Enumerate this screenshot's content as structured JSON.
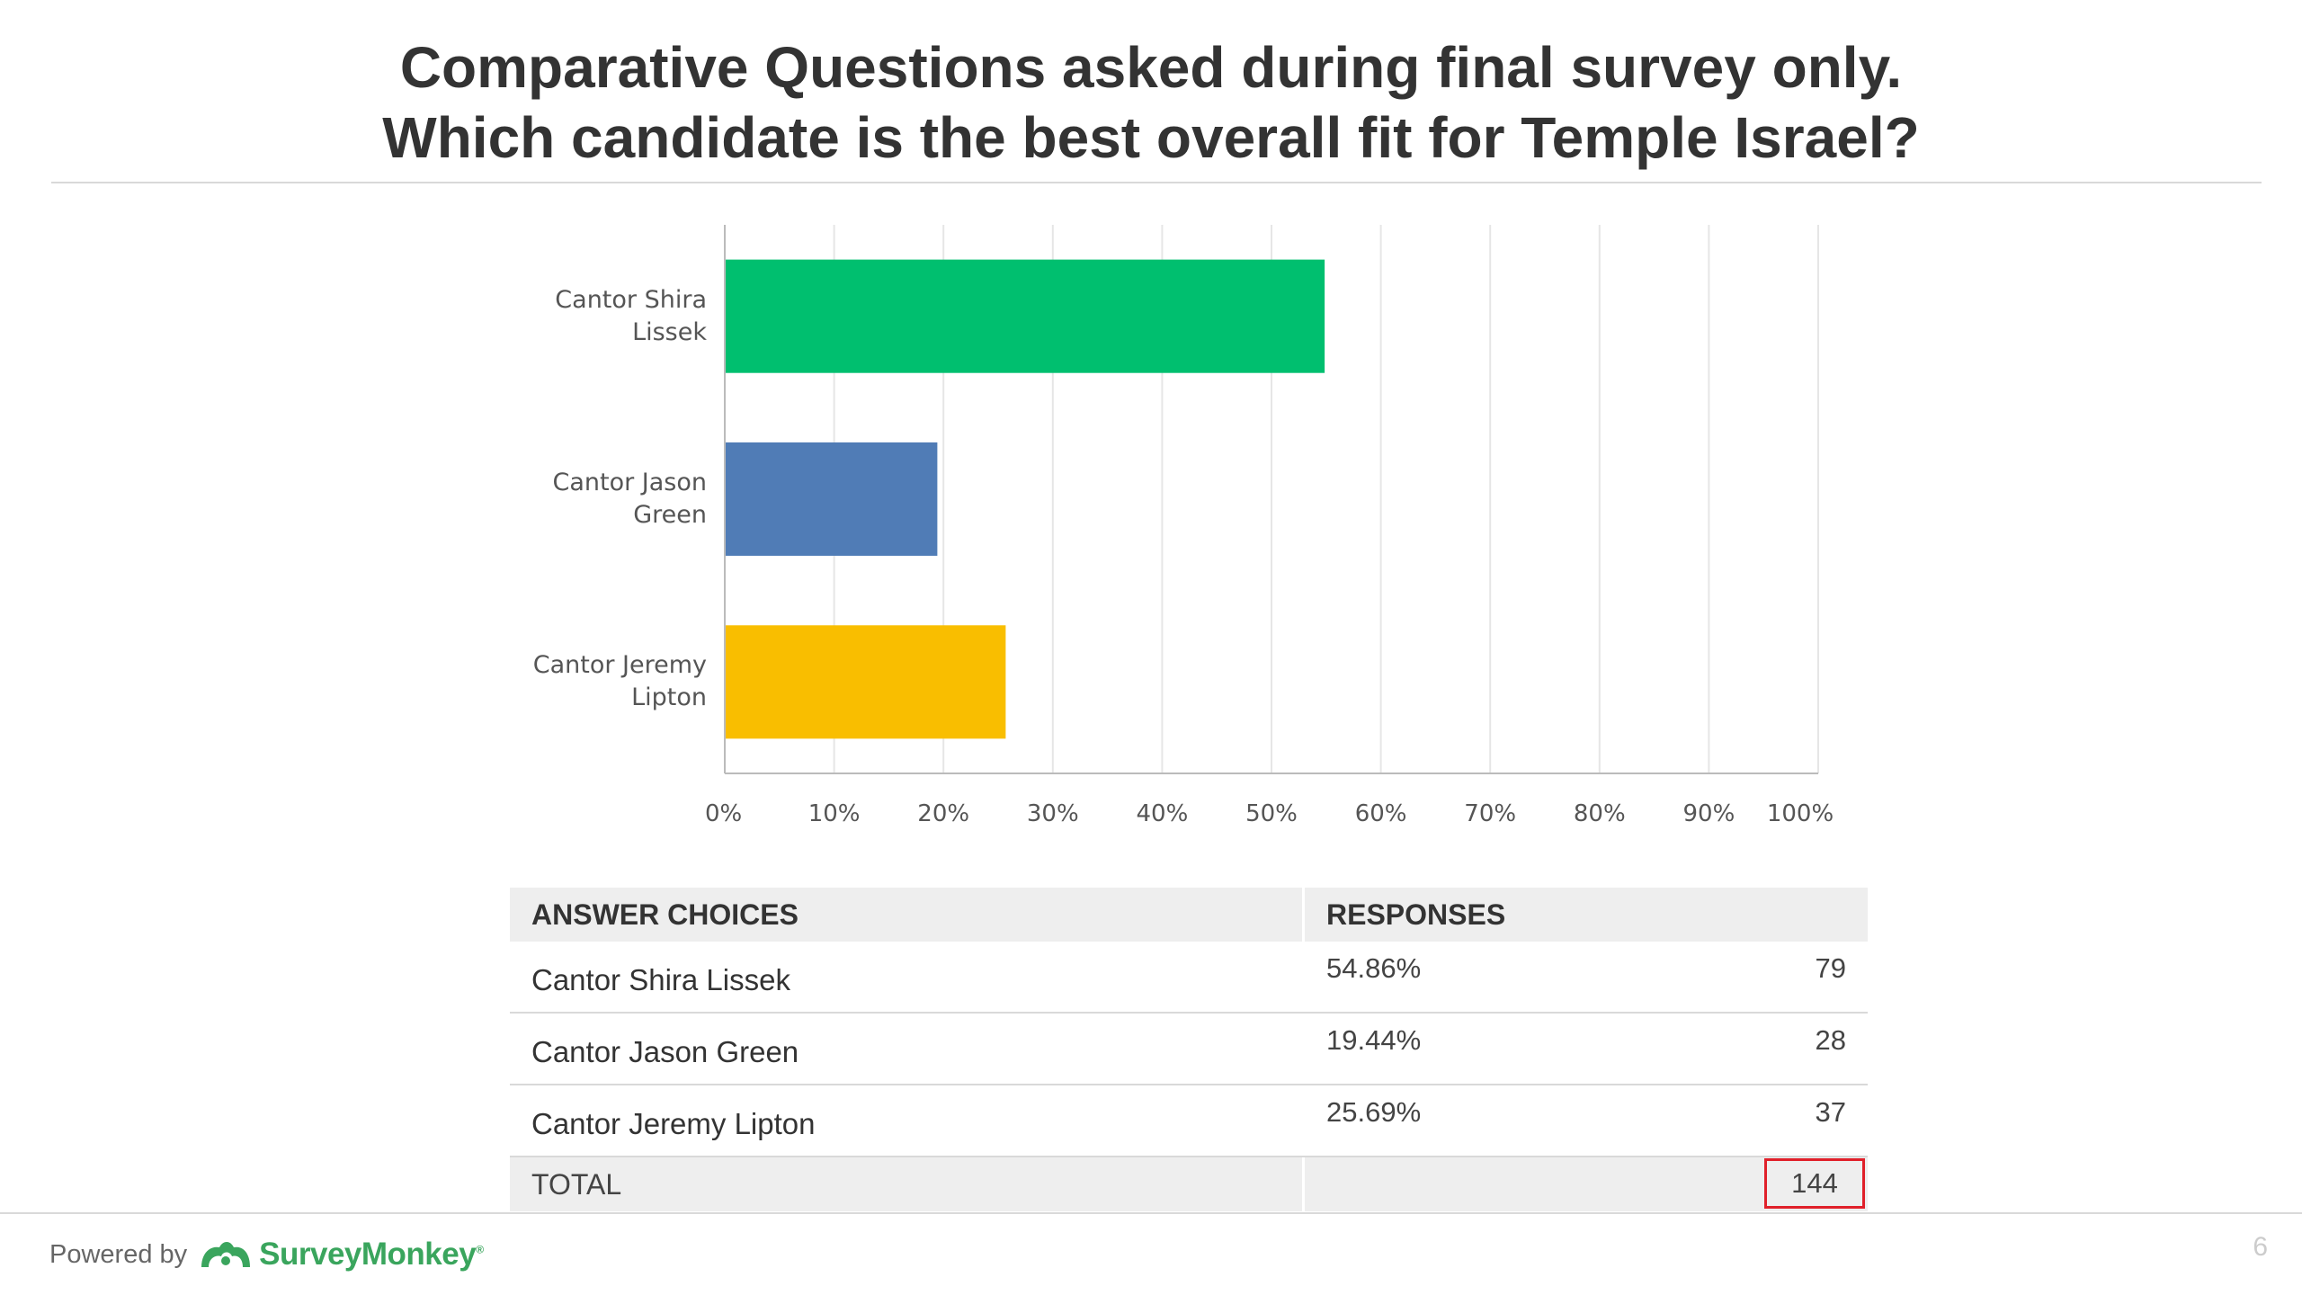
{
  "title": {
    "line1": "Comparative Questions asked during final survey only.",
    "line2": "Which candidate is the best overall fit for Temple Israel?"
  },
  "chart_data": {
    "type": "bar",
    "orientation": "horizontal",
    "categories": [
      {
        "line1": "Cantor Shira",
        "line2": "Lissek"
      },
      {
        "line1": "Cantor Jason",
        "line2": "Green"
      },
      {
        "line1": "Cantor Jeremy",
        "line2": "Lipton"
      }
    ],
    "values": [
      54.86,
      19.44,
      25.69
    ],
    "colors": [
      "#00bf6f",
      "#507cb6",
      "#f9be00"
    ],
    "xlim": [
      0,
      100
    ],
    "xticks": [
      "0%",
      "10%",
      "20%",
      "30%",
      "40%",
      "50%",
      "60%",
      "70%",
      "80%",
      "90%",
      "100%"
    ],
    "grid": true
  },
  "table": {
    "headers": {
      "answer": "ANSWER CHOICES",
      "responses": "RESPONSES"
    },
    "rows": [
      {
        "label": "Cantor Shira Lissek",
        "percent": "54.86%",
        "count": "79"
      },
      {
        "label": "Cantor Jason Green",
        "percent": "19.44%",
        "count": "28"
      },
      {
        "label": "Cantor Jeremy Lipton",
        "percent": "25.69%",
        "count": "37"
      }
    ],
    "total": {
      "label": "TOTAL",
      "count": "144"
    },
    "highlight_color": "#e0202a"
  },
  "footer": {
    "powered_by": "Powered by",
    "brand": "SurveyMonkey",
    "brand_mark": "®",
    "brand_color": "#3aa55d",
    "icon": "surveymonkey-logo-icon"
  },
  "page_number": "6"
}
